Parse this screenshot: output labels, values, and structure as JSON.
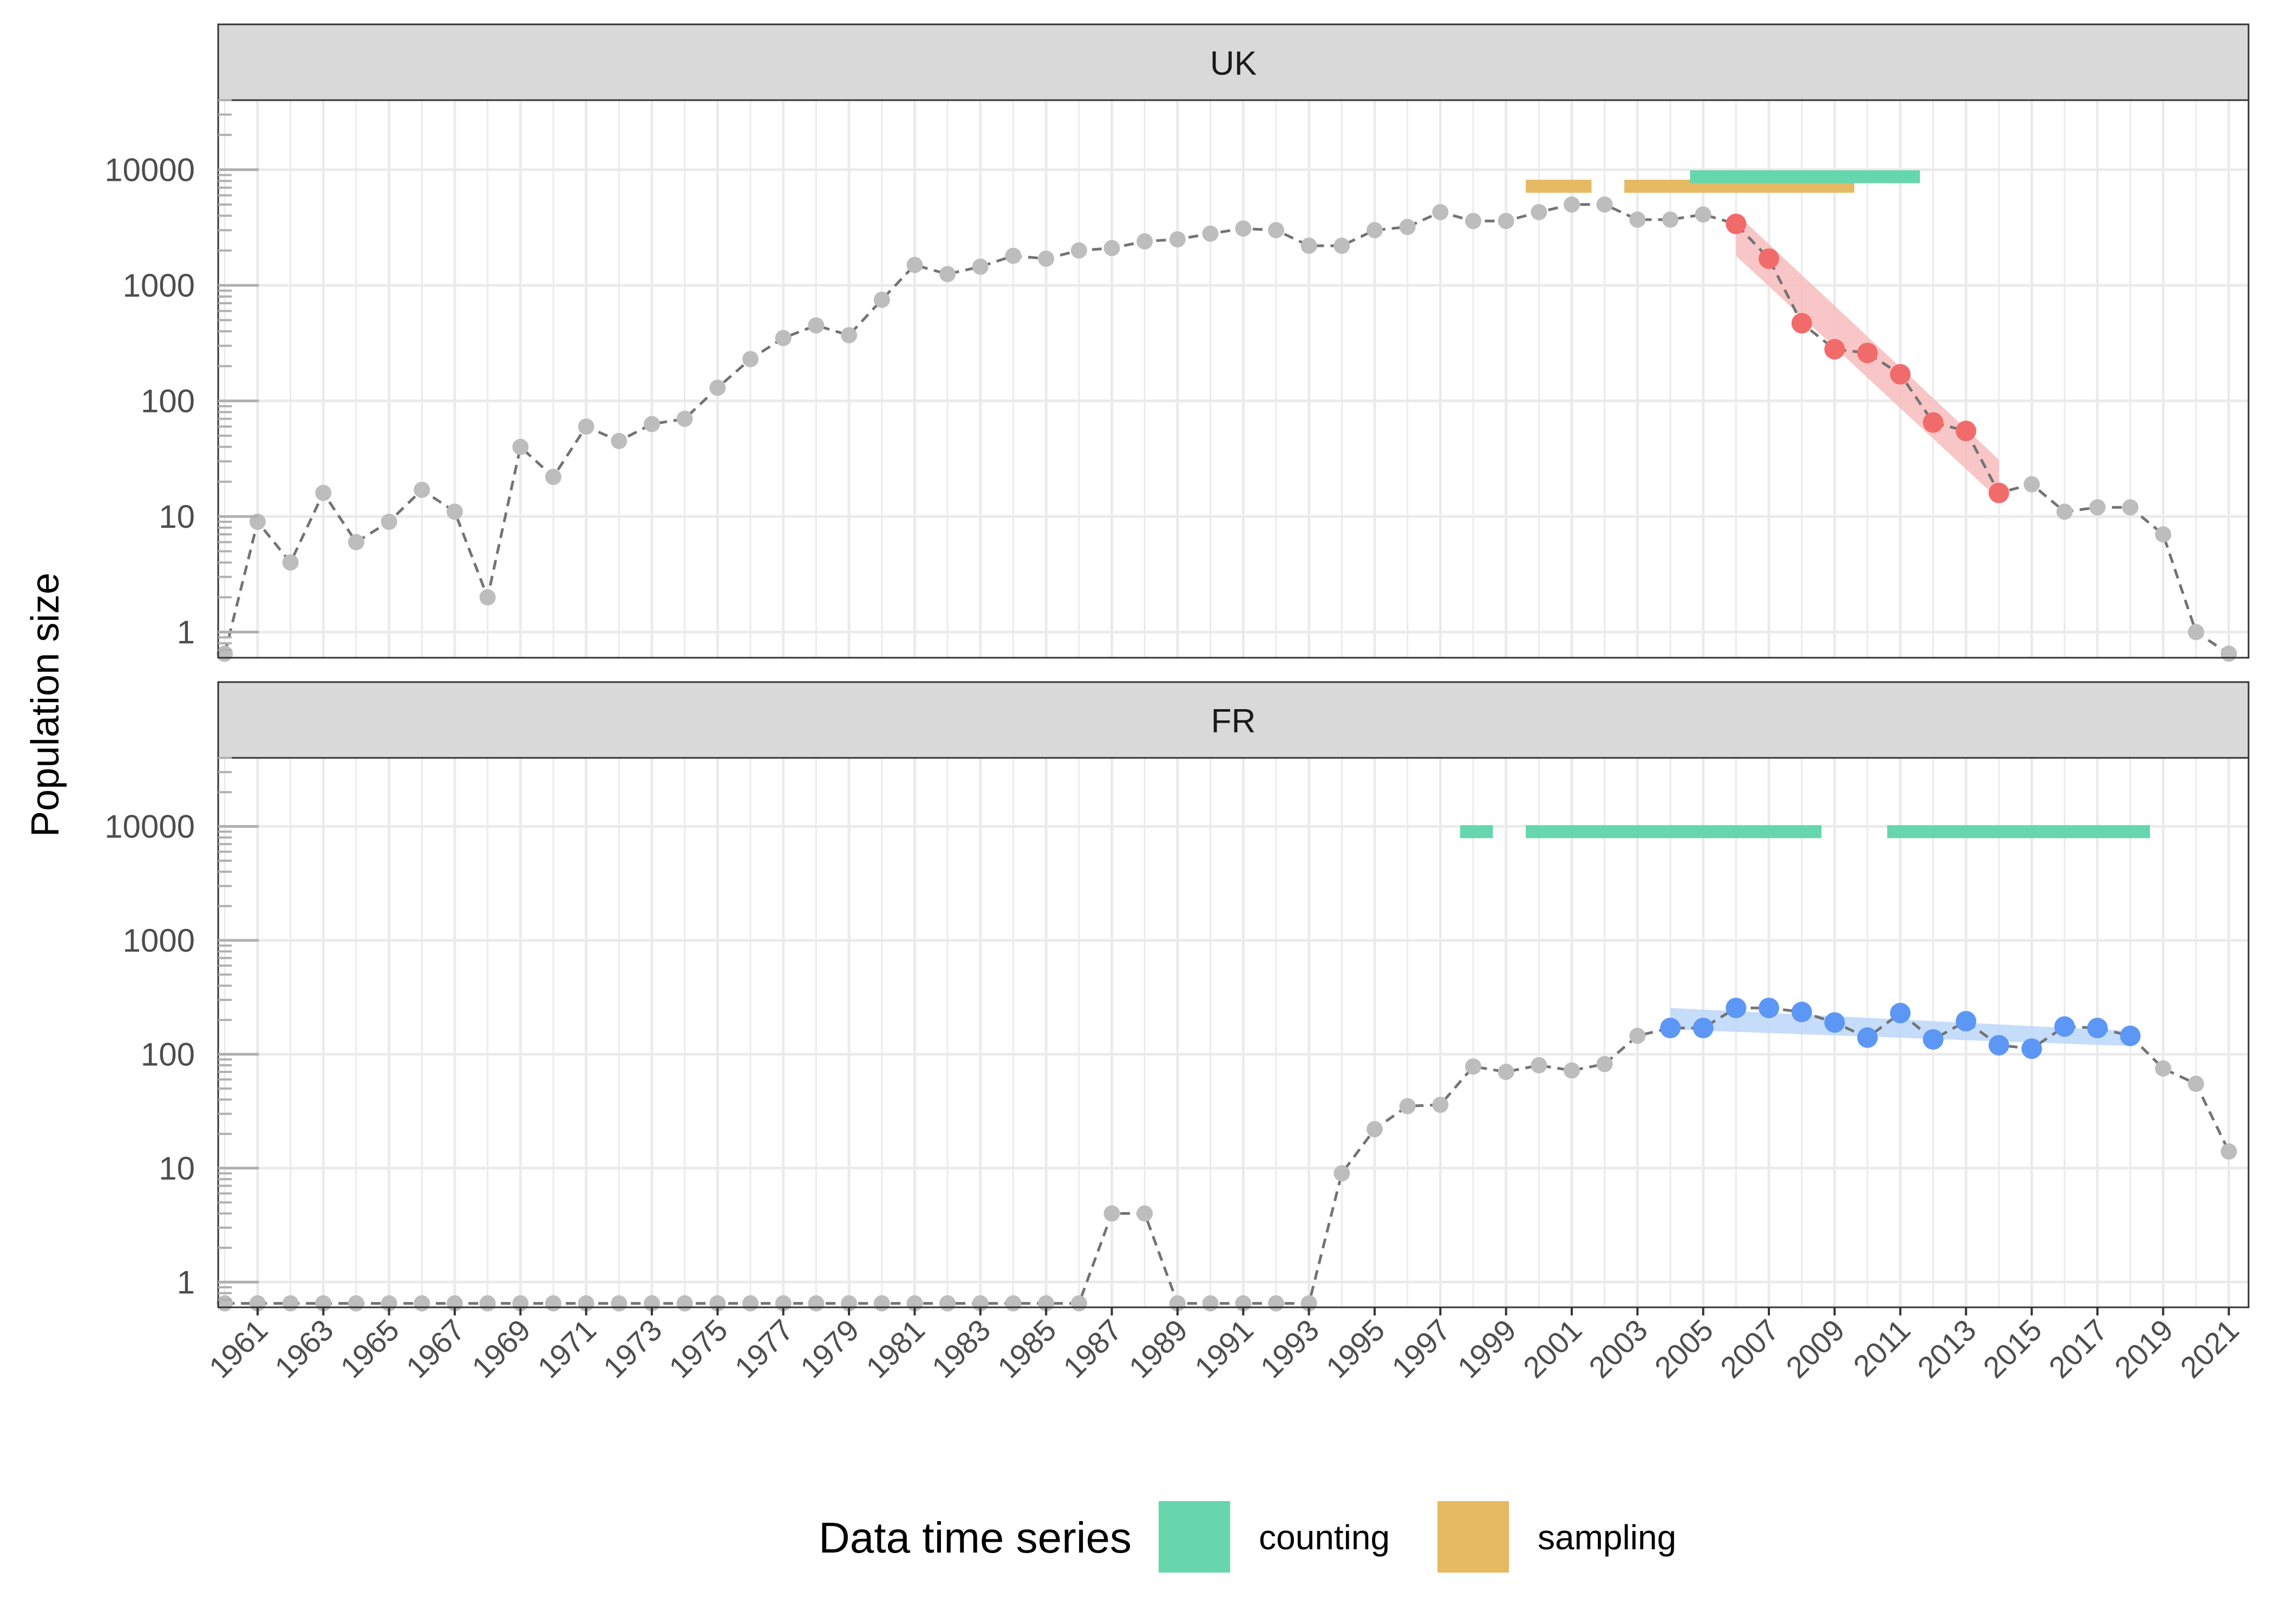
{
  "chart_data": {
    "type": "line",
    "ylabel": "Population size",
    "yscale": "log10",
    "ylim": [
      0.6,
      40000
    ],
    "xlim": [
      1959.8,
      2021.6
    ],
    "yticks": [
      1,
      10,
      100,
      1000,
      10000
    ],
    "ytick_labels": [
      "1",
      "10",
      "100",
      "1000",
      "10000"
    ],
    "xticks": [
      1961,
      1963,
      1965,
      1967,
      1969,
      1971,
      1973,
      1975,
      1977,
      1979,
      1981,
      1983,
      1985,
      1987,
      1989,
      1991,
      1993,
      1995,
      1997,
      1999,
      2001,
      2003,
      2005,
      2007,
      2009,
      2011,
      2013,
      2015,
      2017,
      2019,
      2021
    ],
    "xtick_labels": [
      "1961",
      "1963",
      "1965",
      "1967",
      "1969",
      "1971",
      "1973",
      "1975",
      "1977",
      "1979",
      "1981",
      "1983",
      "1985",
      "1987",
      "1989",
      "1991",
      "1993",
      "1995",
      "1997",
      "1999",
      "2001",
      "2003",
      "2005",
      "2007",
      "2009",
      "2011",
      "2013",
      "2015",
      "2017",
      "2019",
      "2021"
    ],
    "grid": true,
    "legend": {
      "title": "Data time series",
      "position": "bottom",
      "entries": [
        {
          "label": "counting",
          "color": "#66d6ad"
        },
        {
          "label": "sampling",
          "color": "#e6b963"
        }
      ]
    },
    "colors": {
      "point_gray": "#bdbdbd",
      "line_gray": "#737373",
      "uk_highlight": "#f26b6b",
      "uk_ribbon": "#f7bcbc",
      "fr_highlight": "#5c97f5",
      "fr_ribbon": "#bcd6fa",
      "strip_fill": "#d9d9d9",
      "counting": "#66d6ad",
      "sampling": "#e6b963"
    },
    "panels": [
      {
        "label": "UK",
        "x": [
          1960,
          1961,
          1962,
          1963,
          1964,
          1965,
          1966,
          1967,
          1968,
          1969,
          1970,
          1971,
          1972,
          1973,
          1974,
          1975,
          1976,
          1977,
          1978,
          1979,
          1980,
          1981,
          1982,
          1983,
          1984,
          1985,
          1986,
          1987,
          1988,
          1989,
          1990,
          1991,
          1992,
          1993,
          1994,
          1995,
          1996,
          1997,
          1998,
          1999,
          2000,
          2001,
          2002,
          2003,
          2004,
          2005,
          2006,
          2007,
          2008,
          2009,
          2010,
          2011,
          2012,
          2013,
          2014,
          2015,
          2016,
          2017,
          2018,
          2019,
          2020,
          2021
        ],
        "y": [
          0.65,
          9,
          4,
          16,
          6,
          9,
          17,
          11,
          2,
          40,
          22,
          60,
          45,
          63,
          70,
          130,
          230,
          350,
          450,
          370,
          750,
          1500,
          1250,
          1450,
          1800,
          1700,
          2000,
          2100,
          2400,
          2500,
          2800,
          3100,
          3000,
          2200,
          2200,
          3000,
          3200,
          4300,
          3600,
          3600,
          4300,
          5000,
          5000,
          3700,
          3700,
          4100,
          3400,
          1700,
          470,
          280,
          260,
          170,
          65,
          55,
          16,
          19,
          11,
          12,
          12,
          7,
          1,
          0.65
        ],
        "highlight": {
          "x": [
            2006,
            2007,
            2008,
            2009,
            2010,
            2011,
            2012,
            2013,
            2014
          ],
          "y": [
            3400,
            1700,
            470,
            280,
            260,
            170,
            65,
            55,
            16
          ]
        },
        "trend": {
          "x": [
            2006,
            2014
          ],
          "y_lower": [
            1800,
            14
          ],
          "y_upper": [
            4200,
            31
          ]
        },
        "series_bars": [
          {
            "type": "sampling",
            "level": 7200,
            "start": 1999.6,
            "end": 2001.6
          },
          {
            "type": "sampling",
            "level": 7200,
            "start": 2002.6,
            "end": 2009.6
          },
          {
            "type": "counting",
            "level": 8700,
            "start": 2004.6,
            "end": 2011.6
          }
        ]
      },
      {
        "label": "FR",
        "x": [
          1960,
          1961,
          1962,
          1963,
          1964,
          1965,
          1966,
          1967,
          1968,
          1969,
          1970,
          1971,
          1972,
          1973,
          1974,
          1975,
          1976,
          1977,
          1978,
          1979,
          1980,
          1981,
          1982,
          1983,
          1984,
          1985,
          1986,
          1987,
          1988,
          1989,
          1990,
          1991,
          1992,
          1993,
          1994,
          1995,
          1996,
          1997,
          1998,
          1999,
          2000,
          2001,
          2002,
          2003,
          2004,
          2005,
          2006,
          2007,
          2008,
          2009,
          2010,
          2011,
          2012,
          2013,
          2014,
          2015,
          2016,
          2017,
          2018,
          2019,
          2020,
          2021
        ],
        "y": [
          0.65,
          0.65,
          0.65,
          0.65,
          0.65,
          0.65,
          0.65,
          0.65,
          0.65,
          0.65,
          0.65,
          0.65,
          0.65,
          0.65,
          0.65,
          0.65,
          0.65,
          0.65,
          0.65,
          0.65,
          0.65,
          0.65,
          0.65,
          0.65,
          0.65,
          0.65,
          0.65,
          4,
          4,
          0.65,
          0.65,
          0.65,
          0.65,
          0.65,
          9,
          22,
          35,
          36,
          78,
          70,
          80,
          72,
          82,
          145,
          170,
          170,
          255,
          255,
          235,
          190,
          140,
          230,
          135,
          195,
          120,
          112,
          175,
          170,
          145,
          75,
          55,
          14
        ],
        "highlight": {
          "x": [
            2004,
            2005,
            2006,
            2007,
            2008,
            2009,
            2010,
            2011,
            2012,
            2013,
            2014,
            2015,
            2016,
            2017,
            2018
          ],
          "y": [
            170,
            170,
            255,
            255,
            235,
            190,
            140,
            230,
            135,
            195,
            120,
            112,
            175,
            170,
            145
          ]
        },
        "trend": {
          "x": [
            2004,
            2018
          ],
          "y_lower": [
            165,
            118
          ],
          "y_upper": [
            255,
            160
          ]
        },
        "series_bars": [
          {
            "type": "counting",
            "level": 9000,
            "start": 1997.6,
            "end": 1998.6
          },
          {
            "type": "counting",
            "level": 9000,
            "start": 1999.6,
            "end": 2008.6
          },
          {
            "type": "counting",
            "level": 9000,
            "start": 2010.6,
            "end": 2018.6
          }
        ]
      }
    ]
  }
}
